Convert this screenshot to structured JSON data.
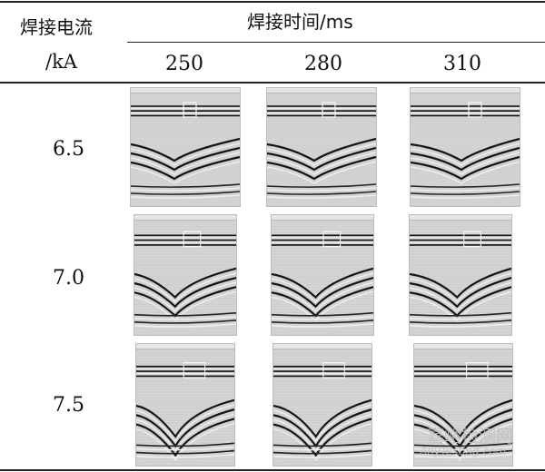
{
  "table": {
    "row_header": {
      "line1": "焊接电流",
      "line2": "/kA"
    },
    "col_header": "焊接时间/ms",
    "times": [
      "250",
      "280",
      "310"
    ],
    "currents": [
      "6.5",
      "7.0",
      "7.5"
    ]
  },
  "watermark": {
    "line1": "嘉峪检测网",
    "line2": "AnyTesting.com"
  },
  "colors": {
    "rule": "#222222",
    "image_bg": "#cfcfcf"
  }
}
